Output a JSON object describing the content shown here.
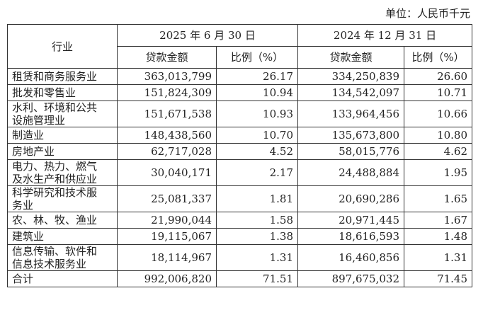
{
  "unit": "单位：人民币千元",
  "table": {
    "header": {
      "industry": "行业",
      "periods": [
        "2025 年 6 月 30 日",
        "2024 年 12 月 31 日"
      ],
      "columns": [
        "贷款金额",
        "比例（%）",
        "贷款金额",
        "比例（%）"
      ]
    },
    "rows": [
      [
        "租赁和商务服务业",
        "363,013,799",
        "26.17",
        "334,250,839",
        "26.60"
      ],
      [
        "批发和零售业",
        "151,824,309",
        "10.94",
        "134,542,097",
        "10.71"
      ],
      [
        "水利、环境和公共设施管理业",
        "151,671,538",
        "10.93",
        "133,964,456",
        "10.66"
      ],
      [
        "制造业",
        "148,438,560",
        "10.70",
        "135,673,800",
        "10.80"
      ],
      [
        "房地产业",
        "62,717,028",
        "4.52",
        "58,015,776",
        "4.62"
      ],
      [
        "电力、热力、燃气及水生产和供应业",
        "30,040,171",
        "2.17",
        "24,488,884",
        "1.95"
      ],
      [
        "科学研究和技术服务业",
        "25,081,337",
        "1.81",
        "20,690,286",
        "1.65"
      ],
      [
        "农、林、牧、渔业",
        "21,990,044",
        "1.58",
        "20,971,445",
        "1.67"
      ],
      [
        "建筑业",
        "19,115,067",
        "1.38",
        "18,616,593",
        "1.48"
      ],
      [
        "信息传输、软件和信息技术服务业",
        "18,114,967",
        "1.31",
        "16,460,856",
        "1.31"
      ],
      [
        "合计",
        "992,006,820",
        "71.51",
        "897,675,032",
        "71.45"
      ]
    ]
  }
}
